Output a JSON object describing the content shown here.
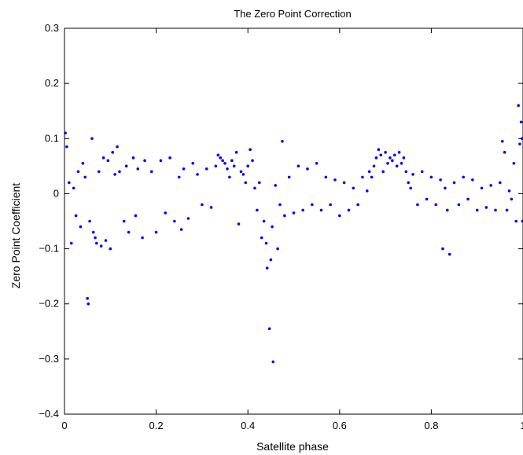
{
  "chart_data": {
    "type": "scatter",
    "title": "The Zero Point Correction",
    "xlabel": "Satellite phase",
    "ylabel": "Zero Point Coefficient",
    "xlim": [
      0,
      1
    ],
    "ylim": [
      -0.4,
      0.3
    ],
    "x_ticks": [
      0,
      0.2,
      0.4,
      0.6,
      0.8,
      1
    ],
    "x_tick_labels": [
      "0",
      "0.2",
      "0.4",
      "0.6",
      "0.8",
      "1"
    ],
    "y_ticks": [
      -0.4,
      -0.3,
      -0.2,
      -0.1,
      0,
      0.1,
      0.2,
      0.3
    ],
    "y_tick_labels": [
      "−0.4",
      "−0.3",
      "−0.2",
      "−0.1",
      "0",
      "0.1",
      "0.2",
      "0.3"
    ],
    "grid": false,
    "legend": "none",
    "marker_color": "#0000ff",
    "series": [
      {
        "points": [
          [
            0.002,
            0.11
          ],
          [
            0.005,
            0.085
          ],
          [
            0.01,
            0.02
          ],
          [
            0.015,
            -0.09
          ],
          [
            0.02,
            0.01
          ],
          [
            0.025,
            -0.04
          ],
          [
            0.03,
            0.04
          ],
          [
            0.035,
            -0.06
          ],
          [
            0.04,
            0.055
          ],
          [
            0.045,
            0.03
          ],
          [
            0.05,
            -0.19
          ],
          [
            0.052,
            -0.2
          ],
          [
            0.055,
            -0.05
          ],
          [
            0.06,
            0.1
          ],
          [
            0.063,
            -0.07
          ],
          [
            0.067,
            -0.08
          ],
          [
            0.07,
            -0.09
          ],
          [
            0.075,
            0.04
          ],
          [
            0.08,
            -0.095
          ],
          [
            0.085,
            0.065
          ],
          [
            0.09,
            -0.085
          ],
          [
            0.095,
            0.06
          ],
          [
            0.1,
            -0.1
          ],
          [
            0.105,
            0.075
          ],
          [
            0.11,
            0.035
          ],
          [
            0.115,
            0.085
          ],
          [
            0.12,
            0.04
          ],
          [
            0.13,
            -0.05
          ],
          [
            0.135,
            0.05
          ],
          [
            0.14,
            -0.07
          ],
          [
            0.15,
            0.065
          ],
          [
            0.155,
            -0.04
          ],
          [
            0.16,
            0.045
          ],
          [
            0.17,
            -0.08
          ],
          [
            0.175,
            0.06
          ],
          [
            0.19,
            0.04
          ],
          [
            0.2,
            -0.07
          ],
          [
            0.21,
            0.06
          ],
          [
            0.22,
            -0.035
          ],
          [
            0.23,
            0.065
          ],
          [
            0.24,
            -0.05
          ],
          [
            0.25,
            0.03
          ],
          [
            0.255,
            -0.065
          ],
          [
            0.26,
            0.045
          ],
          [
            0.27,
            -0.045
          ],
          [
            0.28,
            0.055
          ],
          [
            0.29,
            0.035
          ],
          [
            0.3,
            -0.02
          ],
          [
            0.31,
            0.045
          ],
          [
            0.32,
            -0.025
          ],
          [
            0.33,
            0.05
          ],
          [
            0.335,
            0.07
          ],
          [
            0.34,
            0.065
          ],
          [
            0.345,
            0.06
          ],
          [
            0.35,
            0.055
          ],
          [
            0.355,
            0.045
          ],
          [
            0.36,
            0.03
          ],
          [
            0.365,
            0.06
          ],
          [
            0.37,
            0.05
          ],
          [
            0.375,
            0.075
          ],
          [
            0.38,
            -0.055
          ],
          [
            0.385,
            0.04
          ],
          [
            0.39,
            0.035
          ],
          [
            0.395,
            0.02
          ],
          [
            0.4,
            0.05
          ],
          [
            0.405,
            0.08
          ],
          [
            0.41,
            0.06
          ],
          [
            0.415,
            0.01
          ],
          [
            0.42,
            -0.03
          ],
          [
            0.425,
            0.02
          ],
          [
            0.43,
            -0.08
          ],
          [
            0.435,
            -0.05
          ],
          [
            0.44,
            -0.09
          ],
          [
            0.442,
            -0.135
          ],
          [
            0.447,
            -0.245
          ],
          [
            0.45,
            -0.12
          ],
          [
            0.453,
            -0.06
          ],
          [
            0.455,
            -0.305
          ],
          [
            0.46,
            0.015
          ],
          [
            0.465,
            -0.1
          ],
          [
            0.47,
            -0.02
          ],
          [
            0.475,
            0.095
          ],
          [
            0.48,
            -0.04
          ],
          [
            0.49,
            0.03
          ],
          [
            0.5,
            -0.035
          ],
          [
            0.51,
            0.05
          ],
          [
            0.52,
            -0.03
          ],
          [
            0.53,
            0.045
          ],
          [
            0.54,
            -0.02
          ],
          [
            0.55,
            0.055
          ],
          [
            0.56,
            -0.03
          ],
          [
            0.57,
            0.03
          ],
          [
            0.58,
            -0.02
          ],
          [
            0.59,
            0.025
          ],
          [
            0.6,
            -0.04
          ],
          [
            0.61,
            0.02
          ],
          [
            0.62,
            -0.03
          ],
          [
            0.63,
            0.01
          ],
          [
            0.64,
            -0.02
          ],
          [
            0.65,
            0.03
          ],
          [
            0.66,
            0.005
          ],
          [
            0.665,
            0.04
          ],
          [
            0.67,
            0.03
          ],
          [
            0.675,
            0.05
          ],
          [
            0.68,
            0.065
          ],
          [
            0.685,
            0.08
          ],
          [
            0.69,
            0.07
          ],
          [
            0.695,
            0.04
          ],
          [
            0.7,
            0.075
          ],
          [
            0.705,
            0.055
          ],
          [
            0.71,
            0.065
          ],
          [
            0.715,
            0.06
          ],
          [
            0.72,
            0.07
          ],
          [
            0.725,
            0.05
          ],
          [
            0.73,
            0.075
          ],
          [
            0.735,
            0.055
          ],
          [
            0.74,
            0.065
          ],
          [
            0.745,
            0.04
          ],
          [
            0.75,
            0.02
          ],
          [
            0.755,
            0.01
          ],
          [
            0.76,
            0.035
          ],
          [
            0.77,
            -0.02
          ],
          [
            0.78,
            0.04
          ],
          [
            0.79,
            -0.01
          ],
          [
            0.8,
            0.03
          ],
          [
            0.81,
            -0.02
          ],
          [
            0.82,
            0.025
          ],
          [
            0.825,
            -0.1
          ],
          [
            0.83,
            0.01
          ],
          [
            0.835,
            -0.03
          ],
          [
            0.84,
            -0.11
          ],
          [
            0.85,
            0.02
          ],
          [
            0.86,
            -0.02
          ],
          [
            0.87,
            0.03
          ],
          [
            0.88,
            -0.01
          ],
          [
            0.89,
            0.025
          ],
          [
            0.9,
            -0.03
          ],
          [
            0.91,
            0.01
          ],
          [
            0.92,
            -0.025
          ],
          [
            0.93,
            0.015
          ],
          [
            0.94,
            -0.03
          ],
          [
            0.95,
            0.02
          ],
          [
            0.955,
            0.095
          ],
          [
            0.96,
            0.075
          ],
          [
            0.965,
            -0.03
          ],
          [
            0.97,
            0.005
          ],
          [
            0.975,
            -0.01
          ],
          [
            0.98,
            0.055
          ],
          [
            0.985,
            -0.05
          ],
          [
            0.99,
            0.16
          ],
          [
            0.993,
            0.09
          ],
          [
            0.996,
            0.13
          ],
          [
            0.998,
            0.1
          ],
          [
            0.999,
            -0.05
          ]
        ]
      }
    ]
  }
}
